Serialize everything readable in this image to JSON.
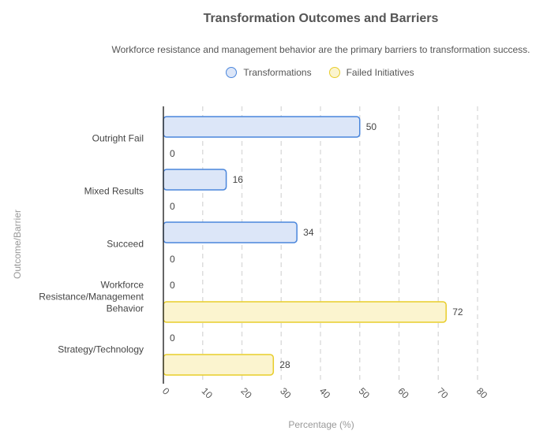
{
  "chart_data": {
    "type": "bar",
    "orientation": "horizontal",
    "title": "Transformation Outcomes and Barriers",
    "subtitle": "Workforce resistance and management behavior are the primary barriers to transformation success.",
    "xlabel": "Percentage (%)",
    "ylabel": "Outcome/Barrier",
    "xlim": [
      0,
      80
    ],
    "x_ticks": [
      "0",
      "10",
      "20",
      "30",
      "40",
      "50",
      "60",
      "70",
      "80"
    ],
    "grid": "vertical dashed",
    "legend_position": "top",
    "categories": [
      [
        "Outright Fail"
      ],
      [
        "Mixed Results"
      ],
      [
        "Succeed"
      ],
      [
        "Workforce",
        "Resistance/Management",
        "Behavior"
      ],
      [
        "Strategy/Technology"
      ]
    ],
    "series": [
      {
        "name": "Transformations",
        "values": [
          50,
          16,
          34,
          0,
          0
        ],
        "fill": "#dce6f8",
        "stroke": "#4a86dc"
      },
      {
        "name": "Failed Initiatives",
        "values": [
          0,
          0,
          0,
          72,
          28
        ],
        "fill": "#fbf4cf",
        "stroke": "#e8cd2a"
      }
    ]
  }
}
